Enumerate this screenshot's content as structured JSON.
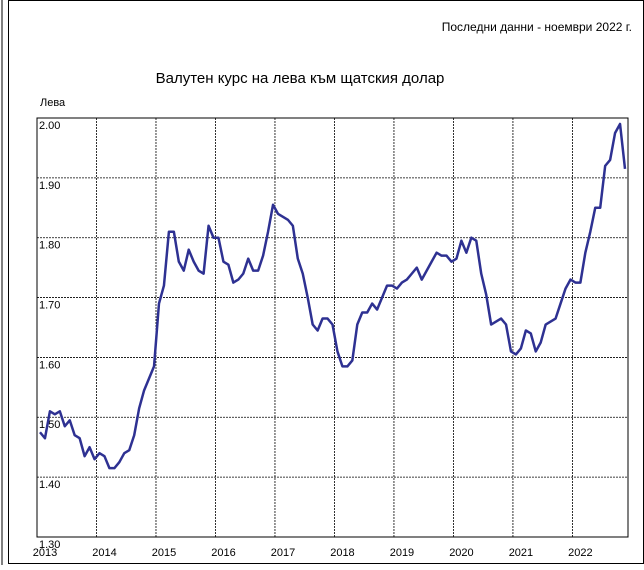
{
  "chart_data": {
    "type": "line",
    "note": "Последни данни - ноември 2022 г.",
    "title": "Валутен курс на лева към щатския долар",
    "y_label": "Лева",
    "categories": [
      "2013",
      null,
      null,
      null,
      null,
      null,
      null,
      null,
      null,
      null,
      null,
      null,
      "2014",
      null,
      null,
      null,
      null,
      null,
      null,
      null,
      null,
      null,
      null,
      null,
      "2015",
      null,
      null,
      null,
      null,
      null,
      null,
      null,
      null,
      null,
      null,
      null,
      "2016",
      null,
      null,
      null,
      null,
      null,
      null,
      null,
      null,
      null,
      null,
      null,
      "2017",
      null,
      null,
      null,
      null,
      null,
      null,
      null,
      null,
      null,
      null,
      null,
      "2018",
      null,
      null,
      null,
      null,
      null,
      null,
      null,
      null,
      null,
      null,
      null,
      "2019",
      null,
      null,
      null,
      null,
      null,
      null,
      null,
      null,
      null,
      null,
      null,
      "2020",
      null,
      null,
      null,
      null,
      null,
      null,
      null,
      null,
      null,
      null,
      null,
      "2021",
      null,
      null,
      null,
      null,
      null,
      null,
      null,
      null,
      null,
      null,
      null,
      "2022",
      null,
      null,
      null,
      null,
      null,
      null,
      null,
      null,
      null,
      null
    ],
    "values": [
      1.475,
      1.465,
      1.51,
      1.505,
      1.51,
      1.485,
      1.495,
      1.47,
      1.465,
      1.435,
      1.45,
      1.43,
      1.44,
      1.435,
      1.415,
      1.415,
      1.425,
      1.44,
      1.445,
      1.47,
      1.515,
      1.545,
      1.565,
      1.585,
      1.69,
      1.72,
      1.81,
      1.81,
      1.76,
      1.745,
      1.78,
      1.76,
      1.745,
      1.74,
      1.82,
      1.8,
      1.8,
      1.76,
      1.755,
      1.725,
      1.73,
      1.74,
      1.765,
      1.745,
      1.745,
      1.77,
      1.81,
      1.855,
      1.84,
      1.835,
      1.83,
      1.82,
      1.765,
      1.74,
      1.7,
      1.655,
      1.645,
      1.665,
      1.665,
      1.655,
      1.61,
      1.585,
      1.585,
      1.595,
      1.655,
      1.675,
      1.675,
      1.69,
      1.68,
      1.7,
      1.72,
      1.72,
      1.715,
      1.725,
      1.73,
      1.74,
      1.75,
      1.73,
      1.745,
      1.76,
      1.775,
      1.77,
      1.77,
      1.76,
      1.765,
      1.795,
      1.775,
      1.8,
      1.795,
      1.74,
      1.705,
      1.655,
      1.66,
      1.665,
      1.655,
      1.61,
      1.605,
      1.615,
      1.645,
      1.64,
      1.61,
      1.625,
      1.655,
      1.66,
      1.665,
      1.69,
      1.715,
      1.73,
      1.725,
      1.725,
      1.775,
      1.81,
      1.85,
      1.85,
      1.92,
      1.93,
      1.975,
      1.99,
      1.915
    ],
    "color": "#2e3192",
    "ylim": [
      1.3,
      2.0
    ],
    "yticks": [
      {
        "value": 1.3,
        "label": "1.30"
      },
      {
        "value": 1.4,
        "label": "1.40"
      },
      {
        "value": 1.5,
        "label": "1.50"
      },
      {
        "value": 1.6,
        "label": "1.60"
      },
      {
        "value": 1.7,
        "label": "1.70"
      },
      {
        "value": 1.8,
        "label": "1.80"
      },
      {
        "value": 1.9,
        "label": "1.90"
      },
      {
        "value": 2.0,
        "label": "2.00"
      }
    ],
    "grid": true
  }
}
